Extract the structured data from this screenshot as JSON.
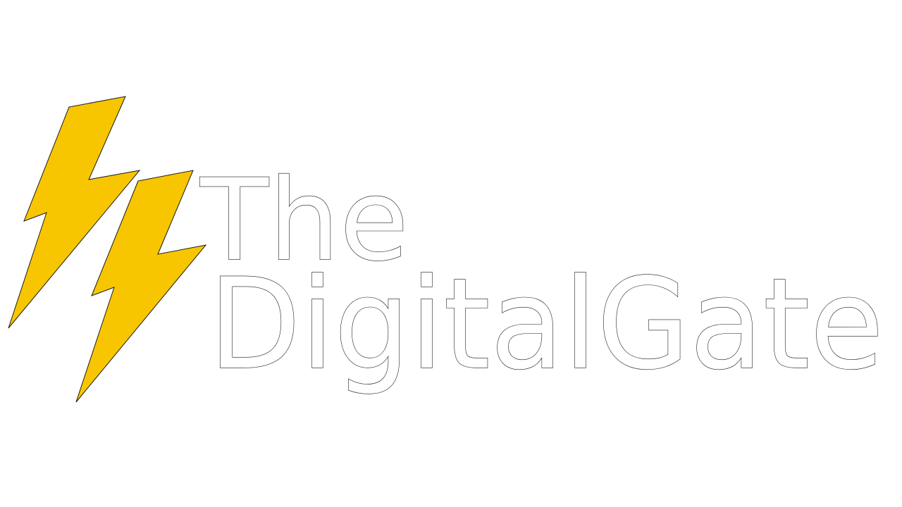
{
  "logo": {
    "line1": "The",
    "line2": "DigitalGate",
    "icon": "lightning-bolt-icon",
    "colors": {
      "bolt_fill": "#F8C600",
      "bolt_outline": "#1a1a1a",
      "text_fill": "#ffffff",
      "text_outline": "#1a1a1a",
      "background": "#ffffff"
    }
  }
}
